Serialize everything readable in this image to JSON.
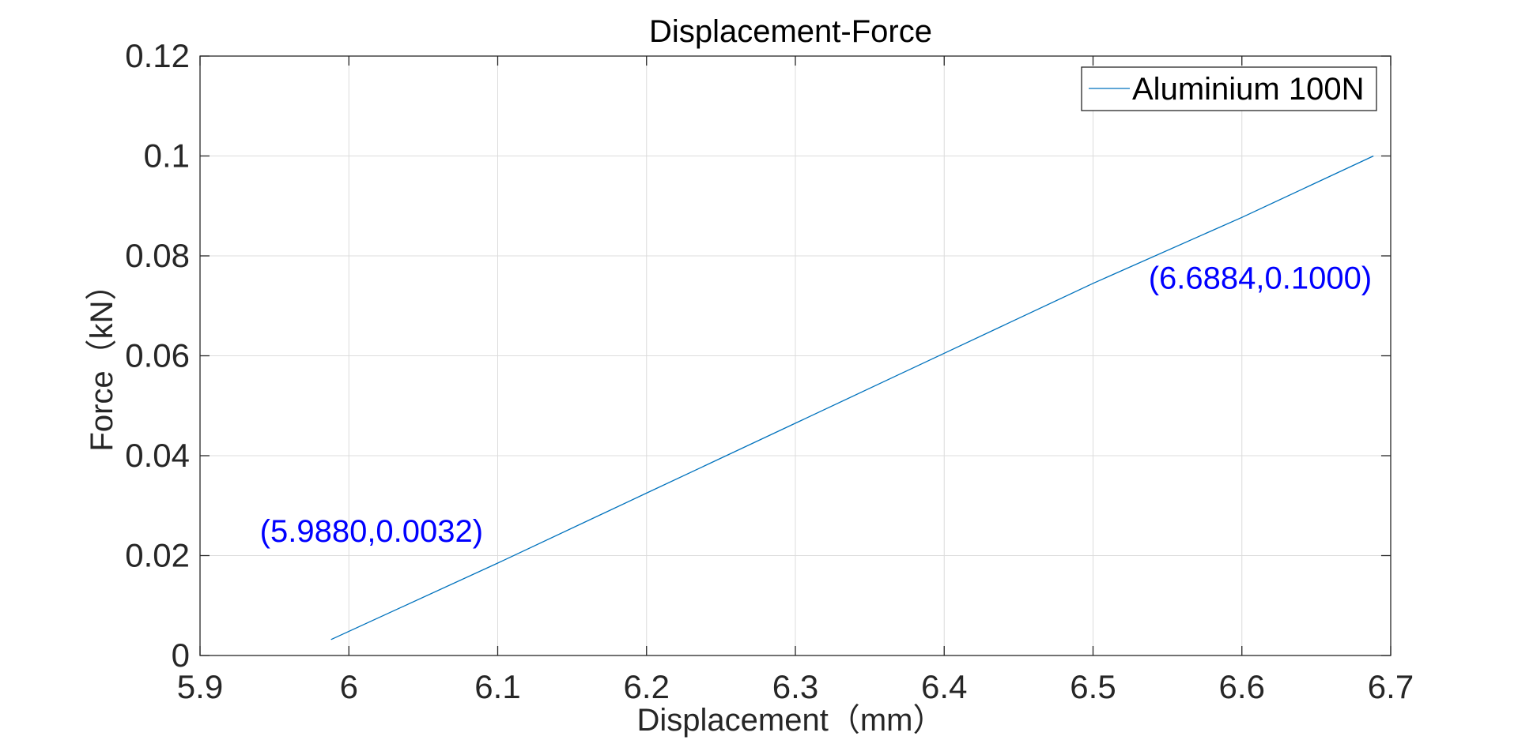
{
  "chart_data": {
    "type": "line",
    "title": "Displacement-Force",
    "xlabel": "Displacement（mm）",
    "ylabel": "Force（kN）",
    "xlim": [
      5.9,
      6.7
    ],
    "ylim": [
      0,
      0.12
    ],
    "xticks": [
      5.9,
      6.0,
      6.1,
      6.2,
      6.3,
      6.4,
      6.5,
      6.6,
      6.7
    ],
    "xtick_labels": [
      "5.9",
      "6",
      "6.1",
      "6.2",
      "6.3",
      "6.4",
      "6.5",
      "6.6",
      "6.7"
    ],
    "yticks": [
      0,
      0.02,
      0.04,
      0.06,
      0.08,
      0.1,
      0.12
    ],
    "ytick_labels": [
      "0",
      "0.02",
      "0.04",
      "0.06",
      "0.08",
      "0.1",
      "0.12"
    ],
    "grid": true,
    "legend_position": "top-right",
    "series": [
      {
        "name": "Aluminium 100N",
        "color": "#0072BD",
        "x": [
          5.988,
          6.1,
          6.2,
          6.3,
          6.4,
          6.5,
          6.6,
          6.6884
        ],
        "y": [
          0.0032,
          0.0185,
          0.0325,
          0.0465,
          0.0605,
          0.0745,
          0.0877,
          0.1
        ]
      }
    ],
    "annotations": [
      {
        "text": "(5.9880,0.0032)",
        "x": 5.988,
        "y": 0.0032,
        "color": "#0000FF",
        "placement": "upper-left"
      },
      {
        "text": "(6.6884,0.1000)",
        "x": 6.6884,
        "y": 0.1,
        "color": "#0000FF",
        "placement": "below-left"
      }
    ]
  }
}
